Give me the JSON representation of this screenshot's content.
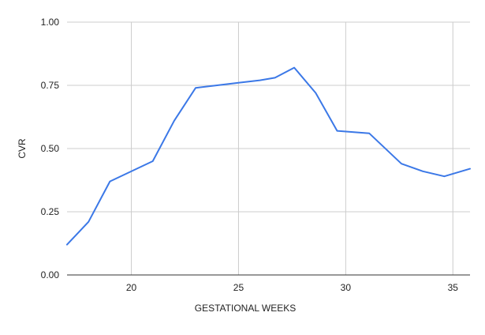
{
  "chart_data": {
    "type": "line",
    "title": "",
    "xlabel": "GESTATIONAL WEEKS",
    "ylabel": "CVR",
    "xlim": [
      17,
      35.8
    ],
    "ylim": [
      0,
      1
    ],
    "x_ticks": [
      20,
      25,
      30,
      35
    ],
    "x_tick_labels": [
      "20",
      "25",
      "30",
      "35"
    ],
    "y_ticks": [
      0,
      0.25,
      0.5,
      0.75,
      1
    ],
    "y_tick_labels": [
      "0.00",
      "0.25",
      "0.50",
      "0.75",
      "1.00"
    ],
    "grid": true,
    "legend": "none",
    "colors": {
      "line": "#3b78e7",
      "grid": "#cccccc",
      "axis": "#333333",
      "text": "#222222"
    },
    "series": [
      {
        "x": [
          17,
          18,
          19,
          21,
          22,
          23,
          24,
          25,
          26,
          26.7,
          27.6,
          28.6,
          29.6,
          31.1,
          32.6,
          33.6,
          34.6,
          35.8
        ],
        "values": [
          0.12,
          0.21,
          0.37,
          0.45,
          0.61,
          0.74,
          0.75,
          0.76,
          0.77,
          0.78,
          0.82,
          0.72,
          0.57,
          0.56,
          0.44,
          0.41,
          0.39,
          0.42
        ]
      }
    ]
  }
}
